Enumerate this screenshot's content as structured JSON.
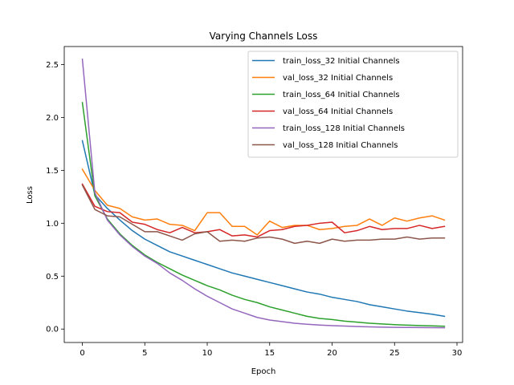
{
  "chart_data": {
    "type": "line",
    "title": "Varying Channels Loss",
    "xlabel": "Epoch",
    "ylabel": "Loss",
    "xlim": [
      -1.45,
      30.45
    ],
    "ylim": [
      -0.127,
      2.67
    ],
    "xticks": [
      0,
      5,
      10,
      15,
      20,
      25,
      30
    ],
    "yticks": [
      0.0,
      0.5,
      1.0,
      1.5,
      2.0,
      2.5
    ],
    "xtick_labels": [
      "0",
      "5",
      "10",
      "15",
      "20",
      "25",
      "30"
    ],
    "ytick_labels": [
      "0.0",
      "0.5",
      "1.0",
      "1.5",
      "2.0",
      "2.5"
    ],
    "grid": false,
    "legend_position": "top-right",
    "x": [
      0,
      1,
      2,
      3,
      4,
      5,
      6,
      7,
      8,
      9,
      10,
      11,
      12,
      13,
      14,
      15,
      16,
      17,
      18,
      19,
      20,
      21,
      22,
      23,
      24,
      25,
      26,
      27,
      28,
      29
    ],
    "series": [
      {
        "name": "train_loss_32 Initial Channels",
        "color": "#1f77b4",
        "values": [
          1.78,
          1.27,
          1.14,
          1.03,
          0.93,
          0.85,
          0.79,
          0.73,
          0.69,
          0.65,
          0.61,
          0.57,
          0.53,
          0.5,
          0.47,
          0.44,
          0.41,
          0.38,
          0.35,
          0.33,
          0.3,
          0.28,
          0.26,
          0.23,
          0.21,
          0.19,
          0.17,
          0.155,
          0.14,
          0.12
        ]
      },
      {
        "name": "val_loss_32 Initial Channels",
        "color": "#ff7f0e",
        "values": [
          1.51,
          1.31,
          1.17,
          1.14,
          1.06,
          1.03,
          1.04,
          0.99,
          0.98,
          0.93,
          1.1,
          1.1,
          0.97,
          0.97,
          0.89,
          1.02,
          0.96,
          0.98,
          0.98,
          0.94,
          0.95,
          0.97,
          0.98,
          1.04,
          0.98,
          1.05,
          1.02,
          1.05,
          1.07,
          1.03
        ]
      },
      {
        "name": "train_loss_64 Initial Channels",
        "color": "#2ca02c",
        "values": [
          2.14,
          1.26,
          1.04,
          0.9,
          0.79,
          0.7,
          0.63,
          0.57,
          0.51,
          0.46,
          0.41,
          0.37,
          0.32,
          0.28,
          0.25,
          0.21,
          0.18,
          0.15,
          0.12,
          0.1,
          0.09,
          0.075,
          0.065,
          0.055,
          0.048,
          0.042,
          0.037,
          0.033,
          0.03,
          0.027
        ]
      },
      {
        "name": "val_loss_64 Initial Channels",
        "color": "#d62728",
        "values": [
          1.37,
          1.16,
          1.11,
          1.1,
          1.01,
          0.99,
          0.94,
          0.91,
          0.96,
          0.91,
          0.92,
          0.94,
          0.88,
          0.89,
          0.87,
          0.93,
          0.94,
          0.97,
          0.98,
          1.0,
          1.01,
          0.91,
          0.93,
          0.97,
          0.94,
          0.95,
          0.95,
          0.98,
          0.95,
          0.97
        ]
      },
      {
        "name": "train_loss_128 Initial Channels",
        "color": "#9467bd",
        "values": [
          2.55,
          1.29,
          1.03,
          0.89,
          0.78,
          0.69,
          0.62,
          0.53,
          0.46,
          0.38,
          0.31,
          0.25,
          0.19,
          0.15,
          0.11,
          0.085,
          0.07,
          0.055,
          0.045,
          0.038,
          0.032,
          0.028,
          0.024,
          0.021,
          0.018,
          0.016,
          0.015,
          0.014,
          0.013,
          0.012
        ]
      },
      {
        "name": "val_loss_128 Initial Channels",
        "color": "#8c564b",
        "values": [
          1.36,
          1.13,
          1.07,
          1.06,
          0.99,
          0.92,
          0.92,
          0.88,
          0.84,
          0.9,
          0.92,
          0.83,
          0.84,
          0.83,
          0.86,
          0.87,
          0.85,
          0.81,
          0.83,
          0.81,
          0.85,
          0.83,
          0.84,
          0.84,
          0.85,
          0.85,
          0.87,
          0.85,
          0.86,
          0.86
        ]
      }
    ]
  }
}
